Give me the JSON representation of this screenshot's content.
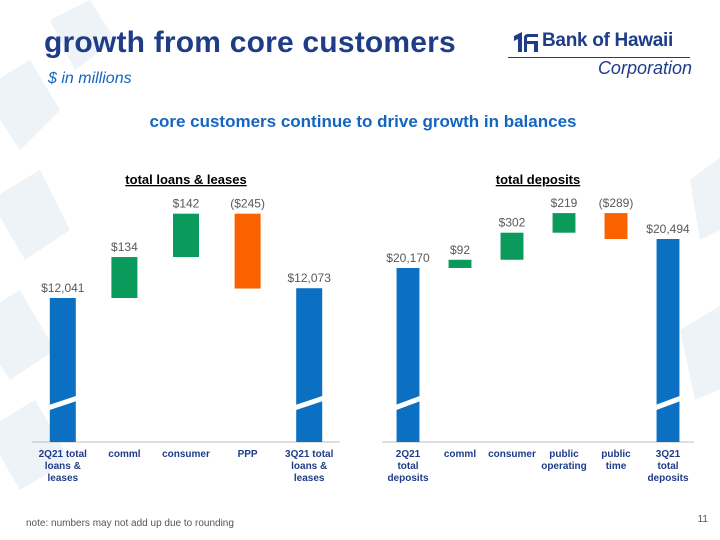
{
  "title": "growth from core customers",
  "subtitle": "$ in millions",
  "headline": "core customers continue to drive growth in balances",
  "logo": {
    "name": "Bank of Hawaii",
    "sub": "Corporation"
  },
  "footnote": "note:  numbers may not add up due to rounding",
  "page_number": "11",
  "colors": {
    "total": "#0b6fc2",
    "increase": "#0a9a5c",
    "decrease": "#fa6200",
    "axis": "#bfbfbf",
    "label": "#595959",
    "category": "#1f3c88"
  },
  "chart_data": [
    {
      "type": "bar",
      "subtype": "waterfall",
      "title": "total loans & leases",
      "categories": [
        [
          "2Q21 total",
          "loans &",
          "leases"
        ],
        [
          "comml"
        ],
        [
          "consumer"
        ],
        [
          "PPP"
        ],
        [
          "3Q21 total",
          "loans &",
          "leases"
        ]
      ],
      "kinds": [
        "total",
        "increase",
        "increase",
        "decrease",
        "total"
      ],
      "values": [
        12041,
        134,
        142,
        -245,
        12073
      ],
      "labels": [
        "$12,041",
        "$134",
        "$142",
        "($245)",
        "$12,073"
      ],
      "axis_break": true
    },
    {
      "type": "bar",
      "subtype": "waterfall",
      "title": "total deposits",
      "categories": [
        [
          "2Q21",
          "total",
          "deposits"
        ],
        [
          "comml"
        ],
        [
          "consumer"
        ],
        [
          "public",
          "operating"
        ],
        [
          "public",
          "time"
        ],
        [
          "3Q21",
          "total",
          "deposits"
        ]
      ],
      "kinds": [
        "total",
        "increase",
        "increase",
        "increase",
        "decrease",
        "total"
      ],
      "values": [
        20170,
        92,
        302,
        219,
        -289,
        20494
      ],
      "labels": [
        "$20,170",
        "$92",
        "$302",
        "$219",
        "($289)",
        "$20,494"
      ],
      "axis_break": true
    }
  ]
}
